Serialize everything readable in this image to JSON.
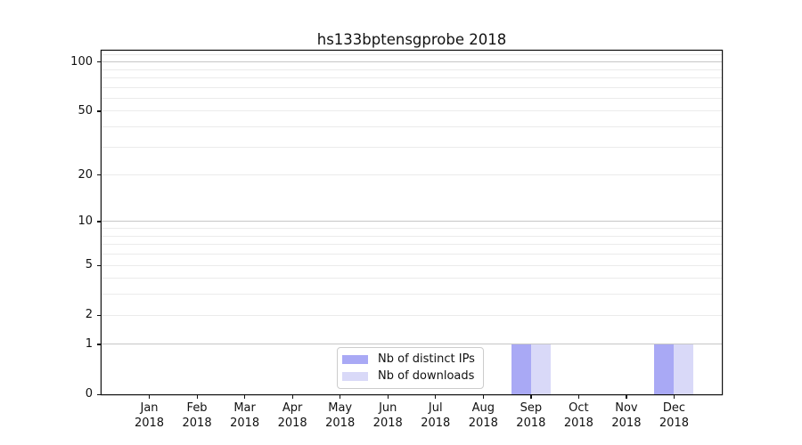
{
  "chart_data": {
    "type": "bar",
    "title": "hs133bptensgprobe 2018",
    "xlabel": "",
    "ylabel": "",
    "categories": [
      "Jan 2018",
      "Feb 2018",
      "Mar 2018",
      "Apr 2018",
      "May 2018",
      "Jun 2018",
      "Jul 2018",
      "Aug 2018",
      "Sep 2018",
      "Oct 2018",
      "Nov 2018",
      "Dec 2018"
    ],
    "series": [
      {
        "name": "Nb of distinct IPs",
        "color": "#a9a9f5",
        "values": [
          0,
          0,
          0,
          0,
          0,
          0,
          0,
          0,
          1,
          0,
          0,
          1
        ]
      },
      {
        "name": "Nb of downloads",
        "color": "#d9d9f8",
        "values": [
          0,
          0,
          0,
          0,
          0,
          0,
          0,
          0,
          1,
          0,
          0,
          1
        ]
      }
    ],
    "yscale": "log1p",
    "ylim": [
      0,
      117
    ],
    "yticks": [
      0,
      1,
      2,
      5,
      10,
      20,
      50,
      100
    ],
    "grid": {
      "major_lines": [
        1,
        10,
        100
      ],
      "minor_lines": [
        2,
        3,
        4,
        5,
        6,
        7,
        8,
        9,
        20,
        30,
        40,
        50,
        60,
        70,
        80,
        90,
        110
      ],
      "major_color": "#c6c6c6",
      "minor_color": "#ebebeb"
    },
    "legend": {
      "position": "lower center",
      "entries": [
        "Nb of distinct IPs",
        "Nb of downloads"
      ]
    }
  },
  "colors": {
    "background": "#ffffff",
    "spine": "#111111",
    "text": "#111111",
    "legend_border": "#cccccc"
  }
}
